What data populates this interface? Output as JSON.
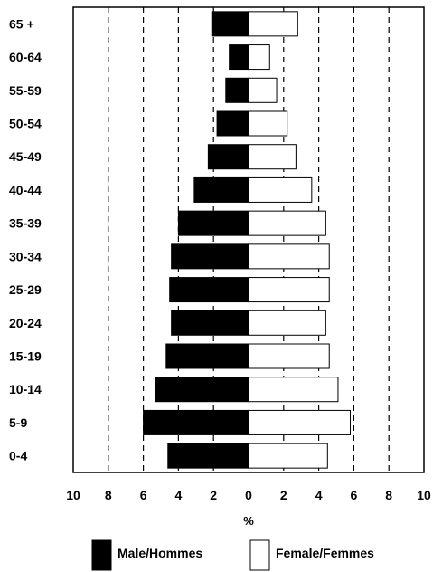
{
  "chart_data": {
    "type": "bar",
    "orientation": "horizontal",
    "subtype": "population-pyramid",
    "categories": [
      "65 +",
      "60-64",
      "55-59",
      "50-54",
      "45-49",
      "40-44",
      "35-39",
      "30-34",
      "25-29",
      "20-24",
      "15-19",
      "10-14",
      "5-9",
      "0-4"
    ],
    "series": [
      {
        "name": "Male/Hommes",
        "side": "left",
        "color": "#000000",
        "values": [
          2.1,
          1.1,
          1.3,
          1.8,
          2.3,
          3.1,
          4.0,
          4.4,
          4.5,
          4.4,
          4.7,
          5.3,
          6.0,
          4.6
        ]
      },
      {
        "name": "Female/Femmes",
        "side": "right",
        "color": "#ffffff",
        "values": [
          2.8,
          1.2,
          1.6,
          2.2,
          2.7,
          3.6,
          4.4,
          4.6,
          4.6,
          4.4,
          4.6,
          5.1,
          5.8,
          4.5
        ]
      }
    ],
    "xlabel": "%",
    "xlim": [
      -10,
      10
    ],
    "x_ticks": [
      -10,
      -8,
      -6,
      -4,
      -2,
      0,
      2,
      4,
      6,
      8,
      10
    ],
    "x_tick_labels": [
      "10",
      "8",
      "6",
      "4",
      "2",
      "0",
      "2",
      "4",
      "6",
      "8",
      "10"
    ],
    "gridlines": [
      -8,
      -6,
      -4,
      -2,
      2,
      4,
      6,
      8
    ],
    "grid_style": "dashed-vertical",
    "legend": {
      "placement": "bottom",
      "items": [
        "Male/Hommes",
        "Female/Femmes"
      ]
    }
  }
}
